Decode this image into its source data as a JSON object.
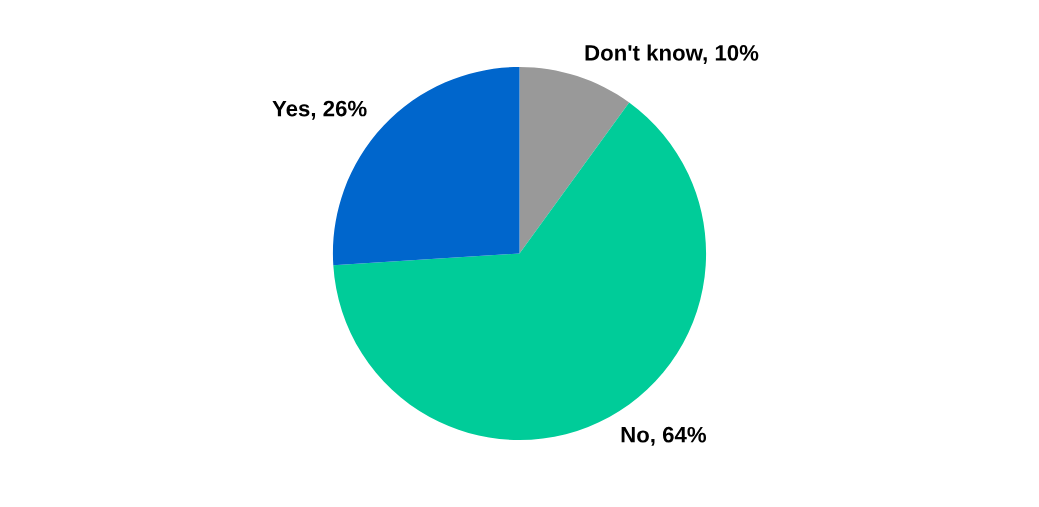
{
  "chart_data": {
    "type": "pie",
    "categories": [
      "Don't know",
      "No",
      "Yes"
    ],
    "values": [
      10,
      64,
      26
    ],
    "value_labels": [
      "10%",
      "64%",
      "26%"
    ],
    "colors": [
      "#999999",
      "#00cc99",
      "#0066cc"
    ]
  }
}
